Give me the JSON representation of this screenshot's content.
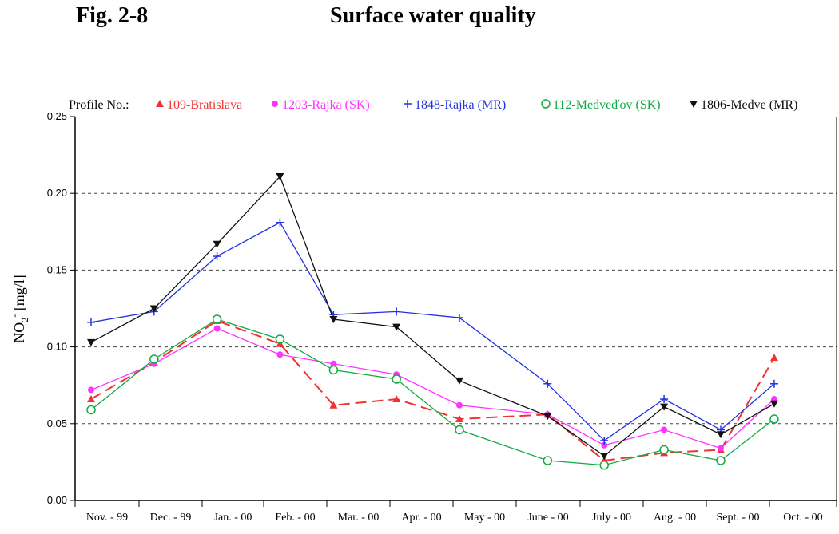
{
  "header": {
    "fig_label": "Fig. 2-8",
    "title": "Surface water quality"
  },
  "chart_data": {
    "type": "line",
    "title": "Surface water quality",
    "legend_title": "Profile No.:",
    "legend_placement": "top",
    "ylabel_main": "NO",
    "ylabel_sub": "2",
    "ylabel_sup": "-",
    "ylabel_units": "[mg/l]",
    "xlabel": "",
    "ylim": [
      0,
      0.25
    ],
    "yticks": [
      "0.00",
      "0.05",
      "0.10",
      "0.15",
      "0.20",
      "0.25"
    ],
    "ytick_values": [
      0,
      0.05,
      0.1,
      0.15,
      0.2,
      0.25
    ],
    "grid_dashed_at": [
      0.05,
      0.1,
      0.15,
      0.2
    ],
    "categories": [
      "Nov. - 99",
      "Dec. - 99",
      "Jan. - 00",
      "Feb. - 00",
      "Mar. - 00",
      "Apr. - 00",
      "May - 00",
      "June - 00",
      "July - 00",
      "Aug. - 00",
      "Sept. - 00",
      "Oct. - 00"
    ],
    "x": [
      0,
      1,
      2,
      3,
      3.85,
      4.85,
      5.85,
      7.25,
      8.15,
      9.1,
      10,
      10.85
    ],
    "series": [
      {
        "name": "109-Bratislava",
        "color": "#ee3333",
        "marker": "triangle-up",
        "dash": "dashed",
        "values": [
          0.066,
          0.09,
          0.117,
          0.102,
          0.062,
          0.066,
          0.053,
          0.056,
          0.026,
          0.031,
          0.033,
          0.093
        ]
      },
      {
        "name": "1203-Rajka (SK)",
        "color": "#ff33ff",
        "marker": "circle-filled",
        "dash": "solid",
        "values": [
          0.072,
          0.089,
          0.112,
          0.095,
          0.089,
          0.082,
          0.062,
          0.056,
          0.036,
          0.046,
          0.034,
          0.066
        ]
      },
      {
        "name": "1848-Rajka (MR)",
        "color": "#2233dd",
        "marker": "plus",
        "dash": "solid",
        "values": [
          0.116,
          0.123,
          0.159,
          0.181,
          0.121,
          0.123,
          0.119,
          0.076,
          0.039,
          0.066,
          0.046,
          0.076
        ]
      },
      {
        "name": "112-Medveďov (SK)",
        "color": "#11aa44",
        "marker": "circle-open",
        "dash": "solid",
        "values": [
          0.059,
          0.092,
          0.118,
          0.105,
          0.085,
          0.079,
          0.046,
          0.026,
          0.023,
          0.033,
          0.026,
          0.053
        ]
      },
      {
        "name": "1806-Medve (MR)",
        "color": "#111111",
        "marker": "triangle-down",
        "dash": "solid",
        "values": [
          0.103,
          0.125,
          0.167,
          0.211,
          0.118,
          0.113,
          0.078,
          0.055,
          0.029,
          0.061,
          0.043,
          0.063
        ]
      }
    ]
  }
}
